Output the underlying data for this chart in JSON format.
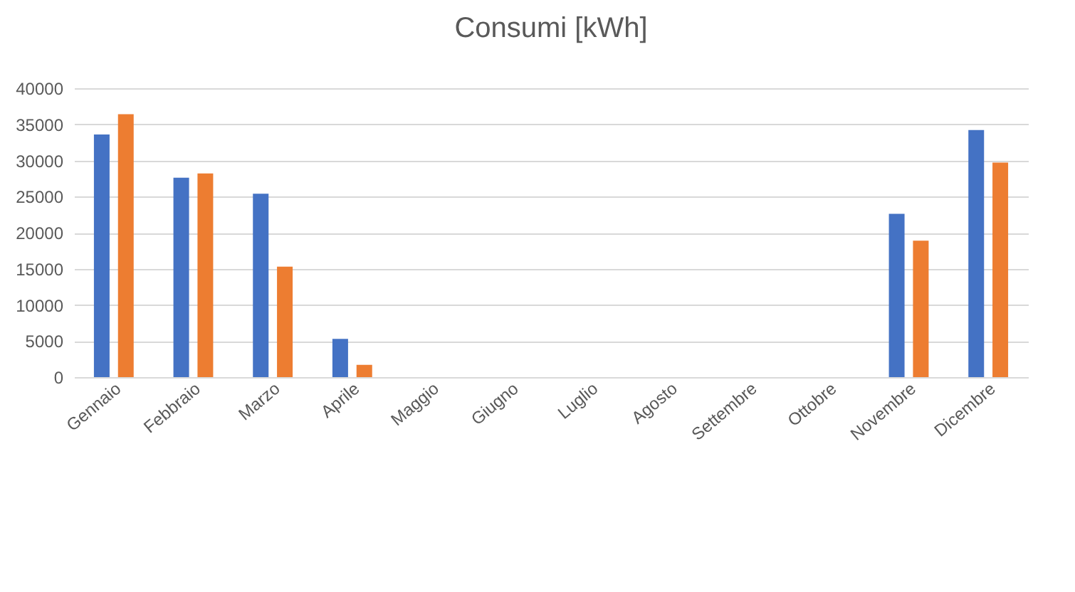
{
  "chart_data": {
    "type": "bar",
    "title": "Consumi [kWh]",
    "categories": [
      "Gennaio",
      "Febbraio",
      "Marzo",
      "Aprile",
      "Maggio",
      "Giugno",
      "Luglio",
      "Agosto",
      "Settembre",
      "Ottobre",
      "Novembre",
      "Dicembre"
    ],
    "series": [
      {
        "color": "#4472c4",
        "values": [
          33600,
          27600,
          25400,
          5300,
          0,
          0,
          0,
          0,
          0,
          0,
          22600,
          34200
        ]
      },
      {
        "color": "#ed7d31",
        "values": [
          36400,
          28200,
          15300,
          1700,
          0,
          0,
          0,
          0,
          0,
          0,
          18900,
          29700
        ]
      }
    ],
    "ylim": [
      0,
      40000
    ],
    "yticks": [
      0,
      5000,
      10000,
      15000,
      20000,
      25000,
      30000,
      35000,
      40000
    ],
    "grid": "y",
    "legend": false
  }
}
